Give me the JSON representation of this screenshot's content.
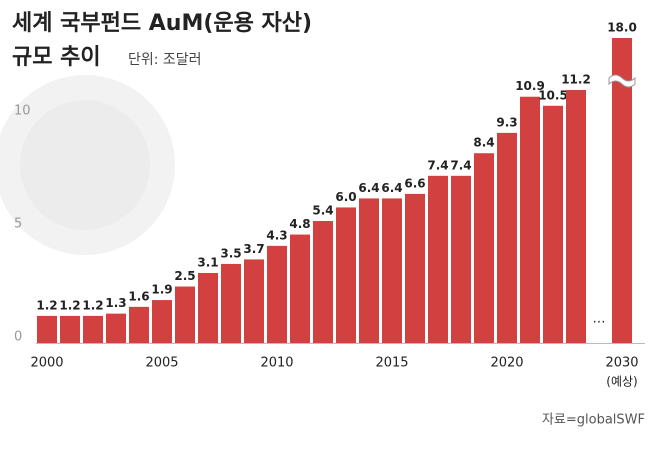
{
  "chart_data": {
    "type": "bar",
    "title": "세계 국부펀드 AuM(운용 자산)",
    "title_line2": "규모 추이",
    "subtitle": "단위: 조달러",
    "source": "자료=globalSWF",
    "categories": [
      "2000",
      null,
      null,
      null,
      null,
      "2005",
      null,
      null,
      null,
      null,
      "2010",
      null,
      null,
      null,
      null,
      "2015",
      null,
      null,
      null,
      null,
      "2020",
      null,
      null,
      null,
      "…",
      "2030"
    ],
    "category_note": {
      "index": 25,
      "label": "(예상)"
    },
    "values": [
      1.2,
      1.2,
      1.2,
      1.3,
      1.6,
      1.9,
      2.5,
      3.1,
      3.5,
      3.7,
      4.3,
      4.8,
      5.4,
      6.0,
      6.4,
      6.4,
      6.6,
      7.4,
      7.4,
      8.4,
      9.3,
      10.9,
      10.5,
      11.2,
      null,
      18.0
    ],
    "value_labels": [
      "1.2",
      "1.2",
      "1.2",
      "1.3",
      "1.6",
      "1.9",
      "2.5",
      "3.1",
      "3.5",
      "3.7",
      "4.3",
      "4.8",
      "5.4",
      "6.0",
      "6.4",
      "6.4",
      "6.6",
      "7.4",
      "7.4",
      "8.4",
      "9.3",
      "10.9",
      "10.5",
      "11.2",
      null,
      "18.0"
    ],
    "color": "#d2403f",
    "ylim": [
      0,
      13.5
    ],
    "yticks": [
      0,
      5,
      10
    ],
    "axis_break": true,
    "grid": false
  }
}
